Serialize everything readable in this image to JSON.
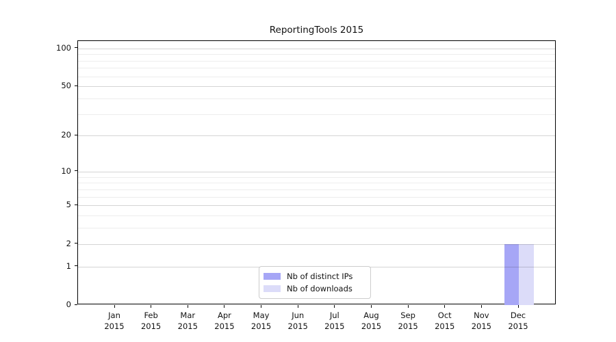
{
  "chart_data": {
    "type": "bar",
    "title": "ReportingTools 2015",
    "categories": [
      "Jan",
      "Feb",
      "Mar",
      "Apr",
      "May",
      "Jun",
      "Jul",
      "Aug",
      "Sep",
      "Oct",
      "Nov",
      "Dec"
    ],
    "category_year": "2015",
    "series": [
      {
        "name": "Nb of distinct IPs",
        "color": "#a6a6f6",
        "values": [
          0,
          0,
          0,
          0,
          0,
          0,
          0,
          0,
          0,
          0,
          0,
          2
        ]
      },
      {
        "name": "Nb of downloads",
        "color": "#dcdcf9",
        "values": [
          0,
          0,
          0,
          0,
          0,
          0,
          0,
          0,
          0,
          0,
          0,
          2
        ]
      }
    ],
    "y_axis": {
      "scale": "log1p",
      "tick_values": [
        0,
        1,
        2,
        5,
        10,
        20,
        50,
        100
      ],
      "minor_gridline_values": [
        3,
        4,
        6,
        7,
        8,
        9,
        30,
        40,
        60,
        70,
        80,
        90
      ],
      "ylim": [
        0,
        114
      ]
    },
    "x_axis": {
      "label_format": "month-over-year"
    },
    "grid": "horizontal-major-and-minor",
    "legend": {
      "position": "bottom-center"
    },
    "colors": {
      "spine": "#000000",
      "text": "#111111",
      "legend_border": "#cccccc",
      "background": "#ffffff"
    }
  }
}
